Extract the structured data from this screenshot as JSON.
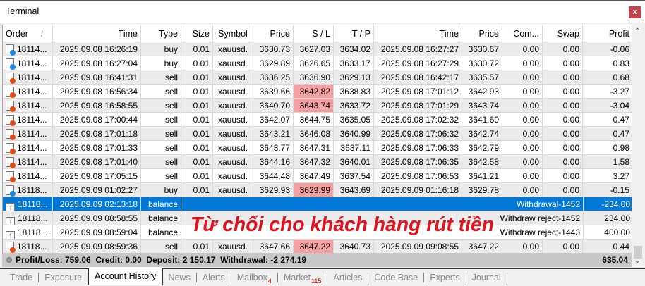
{
  "window": {
    "title": "Terminal",
    "close_label": "x"
  },
  "columns": [
    "Order",
    "Time",
    "Type",
    "Size",
    "Symbol",
    "Price",
    "S / L",
    "T / P",
    "Time",
    "Price",
    "Com...",
    "Swap",
    "Profit"
  ],
  "sort_indicator": "/",
  "rows": [
    {
      "kind": "buy",
      "c": [
        "18114...",
        "2025.09.08 16:26:19",
        "buy",
        "0.01",
        "xauusd.",
        "3630.73",
        "3627.03",
        "3634.02",
        "2025.09.08 16:27:27",
        "3630.67",
        "0.00",
        "0.00",
        "-0.06"
      ],
      "hl": false
    },
    {
      "kind": "buy",
      "c": [
        "18114...",
        "2025.09.08 16:27:04",
        "buy",
        "0.01",
        "xauusd.",
        "3629.89",
        "3626.65",
        "3633.17",
        "2025.09.08 16:27:29",
        "3630.72",
        "0.00",
        "0.00",
        "0.83"
      ],
      "hl": false
    },
    {
      "kind": "sell",
      "c": [
        "18114...",
        "2025.09.08 16:41:31",
        "sell",
        "0.01",
        "xauusd.",
        "3636.25",
        "3636.90",
        "3629.13",
        "2025.09.08 16:42:17",
        "3635.57",
        "0.00",
        "0.00",
        "0.68"
      ],
      "hl": false
    },
    {
      "kind": "sell",
      "c": [
        "18114...",
        "2025.09.08 16:56:34",
        "sell",
        "0.01",
        "xauusd.",
        "3639.66",
        "3642.82",
        "3638.83",
        "2025.09.08 17:01:12",
        "3642.93",
        "0.00",
        "0.00",
        "-3.27"
      ],
      "hl": true
    },
    {
      "kind": "sell",
      "c": [
        "18114...",
        "2025.09.08 16:58:55",
        "sell",
        "0.01",
        "xauusd.",
        "3640.70",
        "3643.74",
        "3633.72",
        "2025.09.08 17:01:29",
        "3643.74",
        "0.00",
        "0.00",
        "-3.04"
      ],
      "hl": true
    },
    {
      "kind": "sell",
      "c": [
        "18114...",
        "2025.09.08 17:00:44",
        "sell",
        "0.01",
        "xauusd.",
        "3642.07",
        "3644.75",
        "3635.05",
        "2025.09.08 17:02:32",
        "3641.60",
        "0.00",
        "0.00",
        "0.47"
      ],
      "hl": false
    },
    {
      "kind": "sell",
      "c": [
        "18114...",
        "2025.09.08 17:01:18",
        "sell",
        "0.01",
        "xauusd.",
        "3643.21",
        "3646.08",
        "3640.99",
        "2025.09.08 17:06:32",
        "3642.74",
        "0.00",
        "0.00",
        "0.47"
      ],
      "hl": false
    },
    {
      "kind": "sell",
      "c": [
        "18114...",
        "2025.09.08 17:01:33",
        "sell",
        "0.01",
        "xauusd.",
        "3643.77",
        "3647.31",
        "3637.11",
        "2025.09.08 17:06:33",
        "3642.79",
        "0.00",
        "0.00",
        "0.98"
      ],
      "hl": false
    },
    {
      "kind": "sell",
      "c": [
        "18114...",
        "2025.09.08 17:01:40",
        "sell",
        "0.01",
        "xauusd.",
        "3644.16",
        "3647.32",
        "3640.01",
        "2025.09.08 17:06:35",
        "3642.58",
        "0.00",
        "0.00",
        "1.58"
      ],
      "hl": false
    },
    {
      "kind": "sell",
      "c": [
        "18114...",
        "2025.09.08 17:05:15",
        "sell",
        "0.01",
        "xauusd.",
        "3644.48",
        "3647.49",
        "3637.54",
        "2025.09.08 17:06:53",
        "3641.21",
        "0.00",
        "0.00",
        "3.27"
      ],
      "hl": false
    },
    {
      "kind": "buy",
      "c": [
        "18118...",
        "2025.09.09 01:02:27",
        "buy",
        "0.01",
        "xauusd.",
        "3629.93",
        "3629.99",
        "3643.69",
        "2025.09.09 01:16:18",
        "3629.78",
        "0.00",
        "0.00",
        "-0.15"
      ],
      "hl": true
    },
    {
      "kind": "withdraw",
      "selected": true,
      "c": [
        "18118...",
        "2025.09.09 02:13:18",
        "balance"
      ],
      "comment": "Withdrawal-1452",
      "profit": "-234.00"
    },
    {
      "kind": "deposit",
      "c": [
        "18118...",
        "2025.09.09 08:58:55",
        "balance"
      ],
      "comment": "Withdraw reject-1452",
      "profit": "234.00"
    },
    {
      "kind": "deposit",
      "c": [
        "18118...",
        "2025.09.09 08:59:04",
        "balance"
      ],
      "comment": "Withdraw reject-1443",
      "profit": "400.00"
    },
    {
      "kind": "sell",
      "c": [
        "18118...",
        "2025.09.09 08:59:36",
        "sell",
        "0.01",
        "xauusd.",
        "3647.66",
        "3647.22",
        "3640.73",
        "2025.09.09 09:08:55",
        "3647.22",
        "0.00",
        "0.00",
        "0.44"
      ],
      "hl": true
    }
  ],
  "summary": {
    "text": "Profit/Loss: 759.06  Credit: 0.00  Deposit: 2 150.17  Withdrawal: -2 274.19",
    "total": "635.04"
  },
  "tabs": [
    {
      "label": "Trade"
    },
    {
      "label": "Exposure"
    },
    {
      "label": "Account History",
      "active": true
    },
    {
      "label": "News"
    },
    {
      "label": "Alerts"
    },
    {
      "label": "Mailbox",
      "badge": "4"
    },
    {
      "label": "Market",
      "badge": "115"
    },
    {
      "label": "Articles"
    },
    {
      "label": "Code Base"
    },
    {
      "label": "Experts"
    },
    {
      "label": "Journal"
    }
  ],
  "watermark": "Từ chối cho khách hàng rút tiền",
  "colors": {
    "selected": "#0078d7",
    "sl_highlight": "#f5a0a0",
    "buy_dot": "#1e88e5",
    "sell_dot": "#e64a19",
    "watermark": "#e0141e"
  }
}
